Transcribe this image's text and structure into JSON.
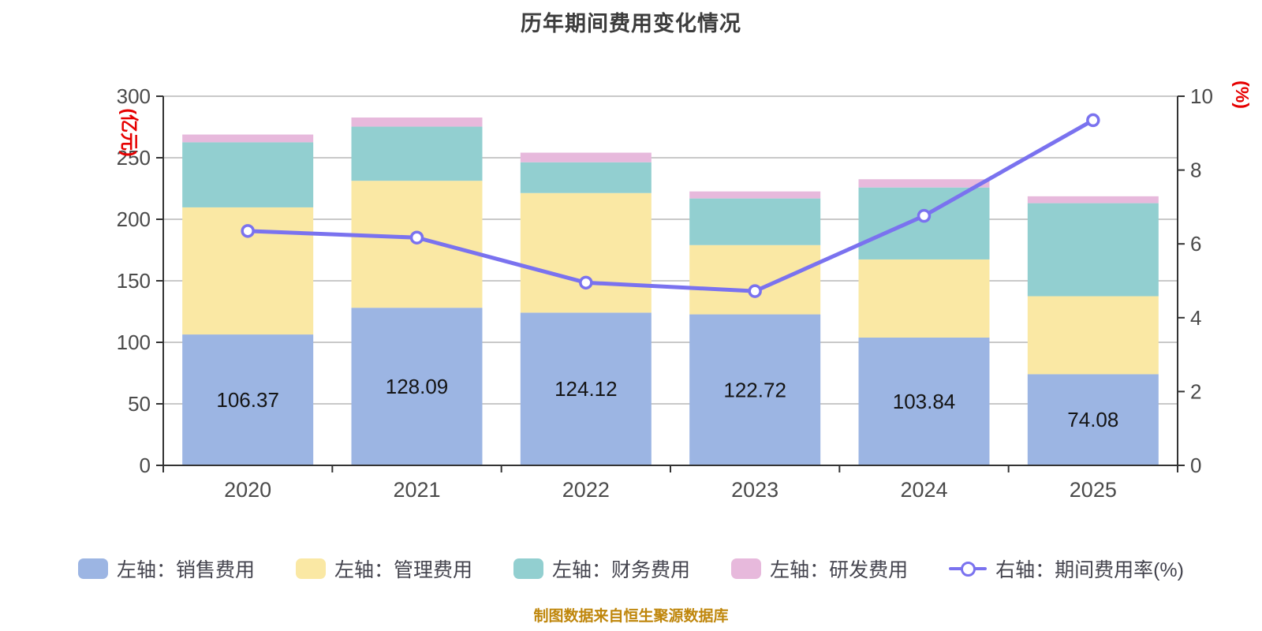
{
  "title": "历年期间费用变化情况",
  "footer": "制图数据来自恒生聚源数据库",
  "ui_colors": {
    "title": "#3c3c3c",
    "axis_line": "#333333",
    "gridline": "#c9c9c9",
    "tick_label": "#4a4a4a",
    "axis_name": "#e60000",
    "value_label": "#141414",
    "legend_text": "#44444e",
    "footer_text": "#bf860b"
  },
  "chart_data": {
    "type": "bar",
    "subtype": "stacked-bars-with-line",
    "title": "历年期间费用变化情况",
    "categories": [
      "2020",
      "2021",
      "2022",
      "2023",
      "2024",
      "2025"
    ],
    "left_axis": {
      "name": "(亿元)",
      "min": 0,
      "max": 300,
      "ticks": [
        0,
        50,
        100,
        150,
        200,
        250,
        300
      ]
    },
    "right_axis": {
      "name": "(%)",
      "min": 0,
      "max": 10,
      "ticks": [
        0,
        2,
        4,
        6,
        8,
        10
      ]
    },
    "grid": true,
    "legend_position": "bottom",
    "series": [
      {
        "name": "销售费用",
        "legend": "左轴：销售费用",
        "color": "#9cb5e3",
        "show_labels": true,
        "values": [
          106.37,
          128.09,
          124.12,
          122.72,
          103.84,
          74.08
        ]
      },
      {
        "name": "管理费用",
        "legend": "左轴：管理费用",
        "color": "#fae8a4",
        "show_labels": false,
        "values": [
          103.3,
          103.2,
          97.2,
          56.3,
          63.5,
          63.4
        ]
      },
      {
        "name": "财务费用",
        "legend": "左轴：财务费用",
        "color": "#92cfd0",
        "show_labels": false,
        "values": [
          52.9,
          44.0,
          25.0,
          37.9,
          58.5,
          75.6
        ]
      },
      {
        "name": "研发费用",
        "legend": "左轴：研发费用",
        "color": "#e7b9dc",
        "show_labels": false,
        "values": [
          6.3,
          7.4,
          7.8,
          5.7,
          6.7,
          5.6
        ]
      }
    ],
    "line_series": {
      "name": "期间费用率(%)",
      "legend": "右轴：期间费用率(%)",
      "color": "#7a72ef",
      "values": [
        6.35,
        6.17,
        4.95,
        4.72,
        6.76,
        9.35
      ]
    },
    "bar_totals": [
      268.87,
      282.69,
      254.12,
      222.62,
      232.54,
      218.68
    ]
  }
}
